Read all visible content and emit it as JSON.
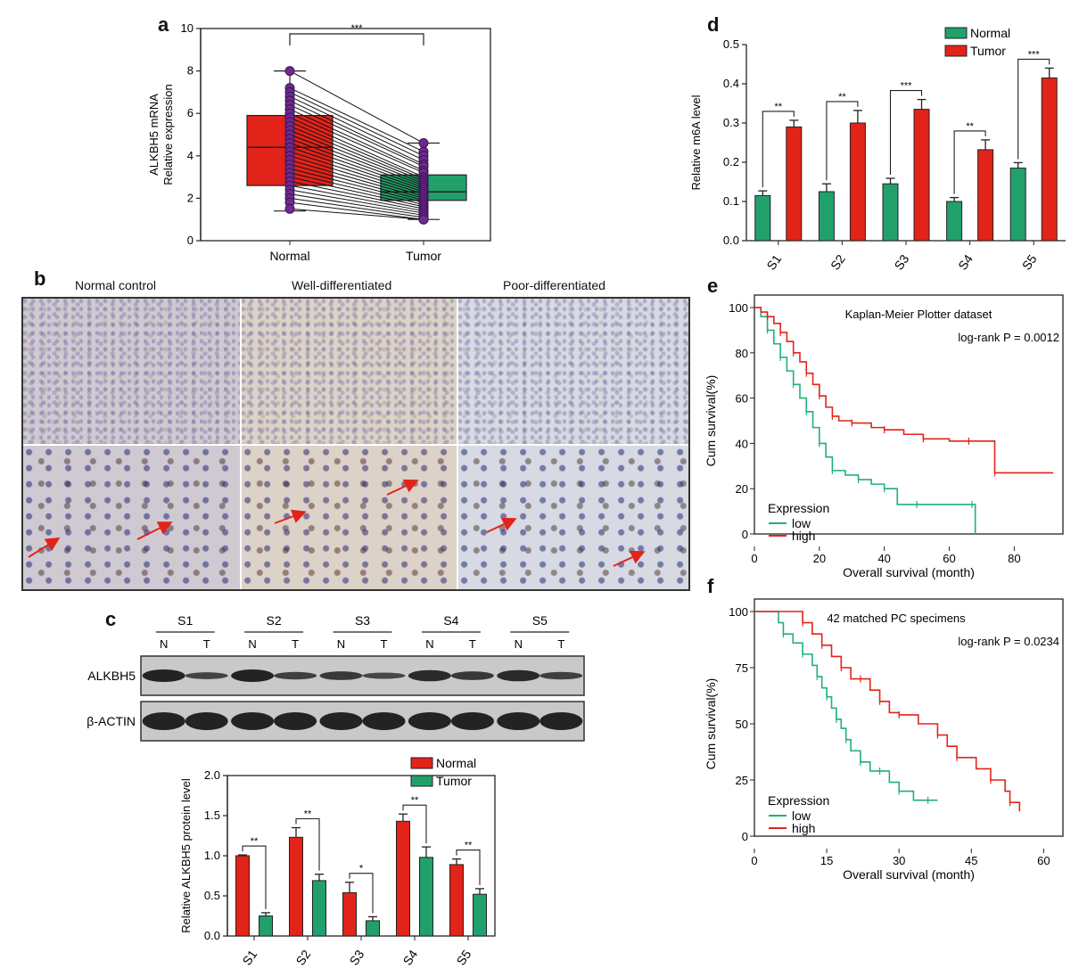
{
  "figure": {
    "panel_labels": [
      "a",
      "b",
      "c",
      "d",
      "e",
      "f"
    ],
    "significance_marks": {
      "a": "***",
      "c": [
        "**",
        "**",
        "*",
        "**",
        "**"
      ],
      "d": [
        "**",
        "**",
        "***",
        "**",
        "***"
      ]
    }
  },
  "colors": {
    "red": "#e2231a",
    "green": "#22a06b",
    "purple": "#6d2b8f",
    "km_green": "#1fb07a",
    "km_red": "#e2231a"
  },
  "ihc": {
    "columns": [
      "Normal control",
      "Well-differentiated",
      "Poor-differentiated"
    ]
  },
  "blot": {
    "samples": [
      "S1",
      "S2",
      "S3",
      "S4",
      "S5"
    ],
    "lanes": [
      "N",
      "T",
      "N",
      "T",
      "N",
      "T",
      "N",
      "T",
      "N",
      "T"
    ],
    "rows": [
      "ALKBH5",
      "β-ACTIN"
    ]
  },
  "chart_data": [
    {
      "panel": "a",
      "type": "box",
      "categories": [
        "Normal",
        "Tumor"
      ],
      "ylabel_lines": [
        "ALKBH5 mRNA",
        "Relative expression"
      ],
      "ylim": [
        0,
        10
      ],
      "yticks": [
        0,
        2,
        4,
        6,
        8,
        10
      ],
      "boxes": [
        {
          "name": "Normal",
          "min": 1.4,
          "q1": 2.6,
          "median": 4.4,
          "q3": 5.9,
          "max": 8.0
        },
        {
          "name": "Tumor",
          "min": 1.0,
          "q1": 1.9,
          "median": 2.3,
          "q3": 3.1,
          "max": 4.6
        }
      ],
      "paired": [
        [
          8.0,
          4.6
        ],
        [
          7.2,
          4.2
        ],
        [
          7.0,
          4.0
        ],
        [
          6.8,
          3.8
        ],
        [
          6.6,
          3.6
        ],
        [
          6.4,
          3.5
        ],
        [
          6.2,
          3.3
        ],
        [
          6.0,
          3.2
        ],
        [
          5.8,
          3.0
        ],
        [
          5.6,
          2.9
        ],
        [
          5.4,
          2.8
        ],
        [
          5.2,
          2.7
        ],
        [
          5.0,
          2.6
        ],
        [
          4.8,
          2.5
        ],
        [
          4.6,
          2.4
        ],
        [
          4.4,
          2.3
        ],
        [
          4.2,
          2.2
        ],
        [
          4.0,
          2.1
        ],
        [
          3.8,
          2.0
        ],
        [
          3.6,
          1.9
        ],
        [
          3.4,
          1.8
        ],
        [
          3.2,
          1.7
        ],
        [
          3.0,
          1.6
        ],
        [
          2.8,
          1.5
        ],
        [
          2.6,
          1.4
        ],
        [
          2.4,
          1.3
        ],
        [
          2.2,
          1.2
        ],
        [
          2.0,
          1.1
        ],
        [
          1.8,
          1.0
        ],
        [
          1.5,
          1.0
        ]
      ]
    },
    {
      "panel": "c",
      "type": "bar",
      "categories": [
        "S1",
        "S2",
        "S3",
        "S4",
        "S5"
      ],
      "ylabel": "Relative ALKBH5 protein level",
      "ylim": [
        0,
        2.0
      ],
      "yticks": [
        0.0,
        0.5,
        1.0,
        1.5,
        2.0
      ],
      "legend": "top-right",
      "series": [
        {
          "name": "Normal",
          "values": [
            1.0,
            1.23,
            0.54,
            1.43,
            0.89
          ],
          "errors": [
            0.01,
            0.12,
            0.13,
            0.09,
            0.07
          ]
        },
        {
          "name": "Tumor",
          "values": [
            0.25,
            0.69,
            0.19,
            0.98,
            0.52
          ],
          "errors": [
            0.04,
            0.08,
            0.05,
            0.13,
            0.07
          ]
        }
      ]
    },
    {
      "panel": "d",
      "type": "bar",
      "categories": [
        "S1",
        "S2",
        "S3",
        "S4",
        "S5"
      ],
      "ylabel": "Relative m6A level",
      "ylim": [
        0,
        0.5
      ],
      "yticks": [
        0.0,
        0.1,
        0.2,
        0.3,
        0.4,
        0.5
      ],
      "legend": "top-right",
      "series": [
        {
          "name": "Normal",
          "values": [
            0.115,
            0.125,
            0.145,
            0.1,
            0.185
          ],
          "errors": [
            0.012,
            0.02,
            0.014,
            0.01,
            0.014
          ]
        },
        {
          "name": "Tumor",
          "values": [
            0.29,
            0.3,
            0.335,
            0.232,
            0.415
          ],
          "errors": [
            0.017,
            0.032,
            0.025,
            0.025,
            0.025
          ]
        }
      ]
    },
    {
      "panel": "e",
      "type": "line",
      "subtype": "kaplan-meier",
      "title": "Kaplan-Meier Plotter dataset",
      "annotation": "log-rank P = 0.0012",
      "xlabel": "Overall survival (month)",
      "ylabel": "Cum survival(%)",
      "xlim": [
        0,
        95
      ],
      "ylim": [
        0,
        100
      ],
      "xticks": [
        0,
        20,
        40,
        60,
        80
      ],
      "yticks": [
        0,
        20,
        40,
        60,
        80,
        100
      ],
      "legend_title": "Expression",
      "series": [
        {
          "name": "low",
          "x": [
            0,
            2,
            4,
            6,
            8,
            10,
            12,
            14,
            16,
            18,
            20,
            22,
            24,
            28,
            32,
            36,
            40,
            44,
            50,
            60,
            67,
            68
          ],
          "y": [
            100,
            96,
            90,
            84,
            78,
            72,
            66,
            60,
            54,
            47,
            40,
            34,
            28,
            26,
            24,
            22,
            20,
            13,
            13,
            13,
            13,
            0
          ]
        },
        {
          "name": "high",
          "x": [
            0,
            2,
            4,
            6,
            8,
            10,
            12,
            14,
            16,
            18,
            20,
            22,
            24,
            26,
            30,
            36,
            40,
            46,
            52,
            60,
            66,
            72,
            74,
            92
          ],
          "y": [
            100,
            98,
            96,
            93,
            89,
            85,
            80,
            76,
            71,
            66,
            61,
            56,
            52,
            50,
            49,
            47,
            46,
            44,
            42,
            41,
            41,
            41,
            27,
            27
          ]
        }
      ]
    },
    {
      "panel": "f",
      "type": "line",
      "subtype": "kaplan-meier",
      "title": "42 matched PC specimens",
      "annotation": "log-rank P = 0.0234",
      "xlabel": "Overall survival (month)",
      "ylabel": "Cum survival(%)",
      "xlim": [
        0,
        64
      ],
      "ylim": [
        0,
        100
      ],
      "xticks": [
        0,
        15,
        30,
        45,
        60
      ],
      "yticks": [
        0,
        25,
        50,
        75,
        100
      ],
      "legend_title": "Expression",
      "series": [
        {
          "name": "low",
          "x": [
            0,
            5,
            6,
            8,
            10,
            12,
            13,
            14,
            15,
            16,
            17,
            18,
            19,
            20,
            22,
            24,
            26,
            28,
            30,
            33,
            36,
            38
          ],
          "y": [
            100,
            95,
            90,
            86,
            81,
            76,
            71,
            66,
            62,
            57,
            52,
            48,
            43,
            38,
            33,
            29,
            29,
            24,
            20,
            16,
            16,
            16
          ]
        },
        {
          "name": "high",
          "x": [
            0,
            8,
            10,
            12,
            14,
            16,
            18,
            20,
            22,
            24,
            26,
            28,
            30,
            34,
            38,
            40,
            42,
            46,
            49,
            52,
            53,
            55
          ],
          "y": [
            100,
            100,
            95,
            90,
            85,
            80,
            75,
            70,
            70,
            65,
            60,
            55,
            54,
            50,
            45,
            40,
            35,
            30,
            25,
            20,
            15,
            11
          ]
        }
      ]
    }
  ]
}
